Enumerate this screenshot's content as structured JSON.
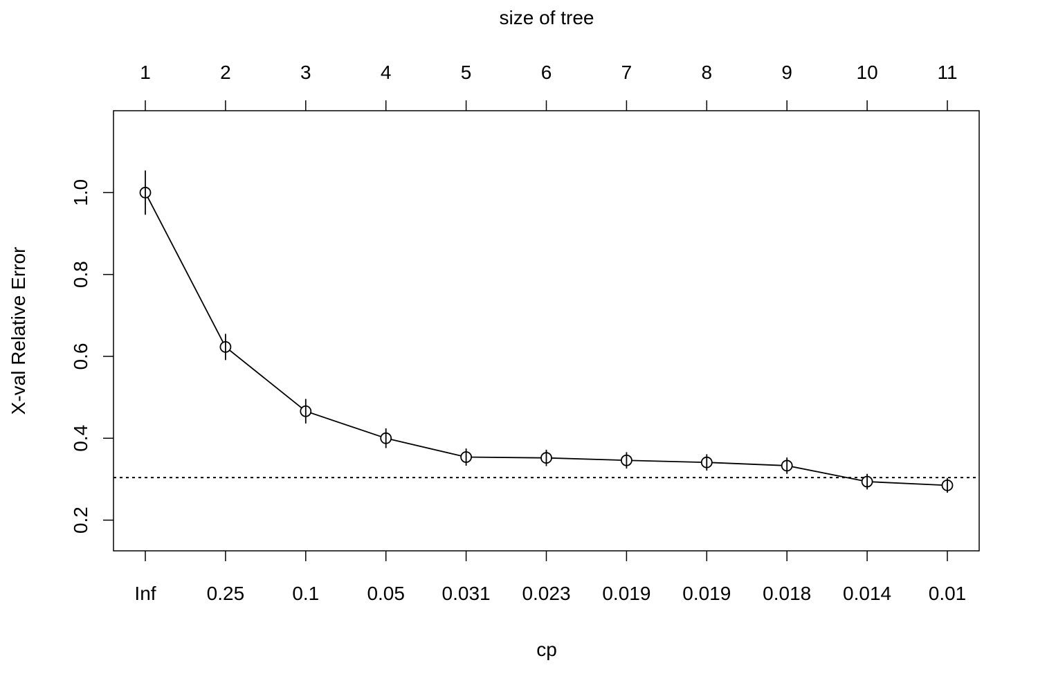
{
  "chart_data": {
    "type": "line",
    "title": "",
    "xlabel": "cp",
    "ylabel": "X-val Relative Error",
    "top_axis_label": "size of tree",
    "categories": [
      "Inf",
      "0.25",
      "0.1",
      "0.05",
      "0.031",
      "0.023",
      "0.019",
      "0.019",
      "0.018",
      "0.014",
      "0.01"
    ],
    "top_categories": [
      "1",
      "2",
      "3",
      "4",
      "5",
      "6",
      "7",
      "8",
      "9",
      "10",
      "11"
    ],
    "series": [
      {
        "values": [
          1.0,
          0.623,
          0.466,
          0.4,
          0.354,
          0.352,
          0.346,
          0.341,
          0.333,
          0.294,
          0.285
        ],
        "errors": [
          0.054,
          0.032,
          0.03,
          0.024,
          0.021,
          0.02,
          0.02,
          0.02,
          0.02,
          0.019,
          0.018
        ]
      }
    ],
    "reference_line": 0.304,
    "yticks": [
      "0.2",
      "0.4",
      "0.6",
      "0.8",
      "1.0"
    ],
    "ylim": [
      0.125,
      1.2
    ],
    "grid": false,
    "marker": "open-circle",
    "color": "#000000"
  }
}
